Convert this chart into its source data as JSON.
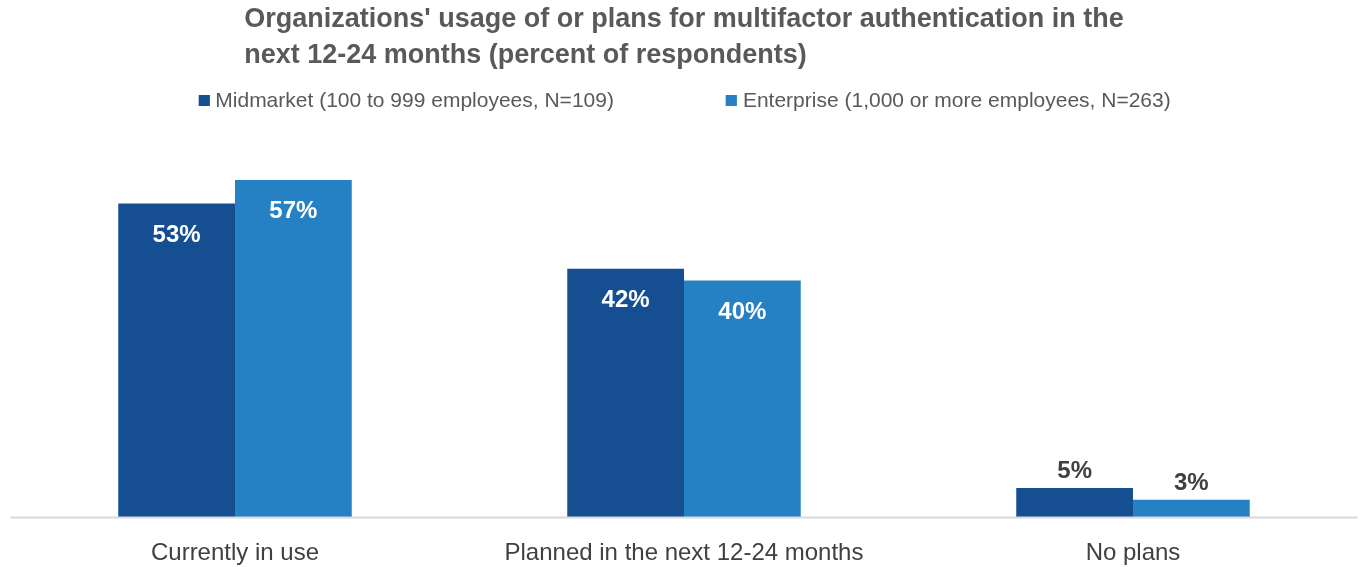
{
  "chart_data": {
    "type": "bar",
    "title": "Organizations' usage of or plans for multifactor authentication in the next 12-24 months (percent of respondents)",
    "categories": [
      "Currently in use",
      "Planned in the next 12-24 months",
      "No plans"
    ],
    "series": [
      {
        "name": "Midmarket (100 to 999 employees, N=109)",
        "color": "#154f91",
        "values": [
          53,
          42,
          5
        ],
        "value_labels": [
          "53%",
          "42%",
          "5%"
        ]
      },
      {
        "name": "Enterprise (1,000 or more employees, N=263)",
        "color": "#2581c4",
        "values": [
          57,
          40,
          3
        ],
        "value_labels": [
          "57%",
          "40%",
          "3%"
        ]
      }
    ],
    "legend": "top"
  }
}
